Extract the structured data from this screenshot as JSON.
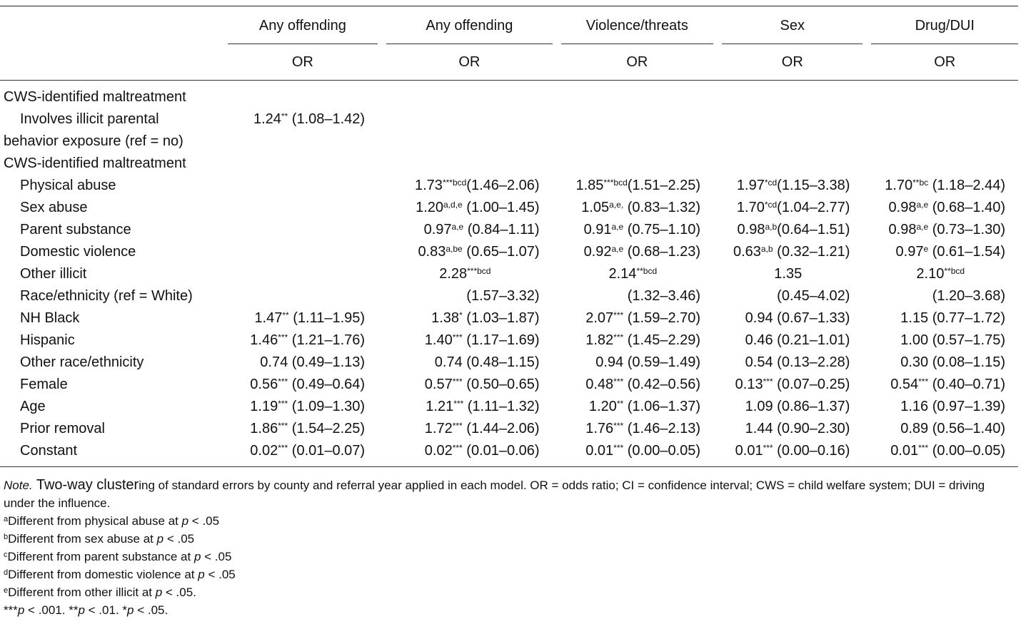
{
  "headers": {
    "groups": [
      "Any offending",
      "Any offending",
      "Violence/threats",
      "Sex",
      "Drug/DUI"
    ],
    "sub": [
      "OR",
      "OR",
      "OR",
      "OR",
      "OR"
    ]
  },
  "rows": [
    {
      "label": "CWS-identified maltreatment",
      "indent": false,
      "cells": [
        null,
        null,
        null,
        null,
        null
      ]
    },
    {
      "label": "Involves illicit parental",
      "indent": true,
      "cells": [
        [
          "1.24",
          "**",
          " (1.08–1.42)"
        ],
        null,
        null,
        null,
        null
      ]
    },
    {
      "label": "behavior exposure (ref = no)",
      "indent": false,
      "cells": [
        null,
        null,
        null,
        null,
        null
      ]
    },
    {
      "label": "CWS-identified maltreatment",
      "indent": false,
      "cells": [
        null,
        null,
        null,
        null,
        null
      ]
    },
    {
      "label": "Physical abuse",
      "indent": true,
      "cells": [
        null,
        [
          "1.73",
          "***bcd",
          "(1.46–2.06)"
        ],
        [
          "1.85",
          "***bcd",
          "(1.51–2.25)"
        ],
        [
          "1.97",
          "*cd",
          "(1.15–3.38)"
        ],
        [
          "1.70",
          "**bc",
          " (1.18–2.44)"
        ]
      ]
    },
    {
      "label": "Sex abuse",
      "indent": true,
      "cells": [
        null,
        [
          "1.20",
          "a,d,e",
          " (1.00–1.45)"
        ],
        [
          "1.05",
          "a,e,",
          " (0.83–1.32)"
        ],
        [
          "1.70",
          "*cd",
          "(1.04–2.77)"
        ],
        [
          "0.98",
          "a,e",
          " (0.68–1.40)"
        ]
      ]
    },
    {
      "label": "Parent substance",
      "indent": true,
      "cells": [
        null,
        [
          "0.97",
          "a,e",
          " (0.84–1.11)"
        ],
        [
          "0.91",
          "a,e",
          " (0.75–1.10)"
        ],
        [
          "0.98",
          "a,b",
          "(0.64–1.51)"
        ],
        [
          "0.98",
          "a,e",
          " (0.73–1.30)"
        ]
      ]
    },
    {
      "label": "Domestic violence",
      "indent": true,
      "cells": [
        null,
        [
          "0.83",
          "a,be",
          " (0.65–1.07)"
        ],
        [
          "0.92",
          "a,e",
          " (0.68–1.23)"
        ],
        [
          "0.63",
          "a,b",
          " (0.32–1.21)"
        ],
        [
          "0.97",
          "e",
          " (0.61–1.54)"
        ]
      ]
    },
    {
      "label": "Other illicit",
      "indent": true,
      "center": true,
      "cells": [
        null,
        [
          "2.28",
          "***bcd",
          ""
        ],
        [
          "2.14",
          "**bcd",
          ""
        ],
        [
          "1.35",
          "",
          ""
        ],
        [
          "2.10",
          "**bcd",
          ""
        ]
      ]
    },
    {
      "label": "Race/ethnicity (ref = White)",
      "indent": true,
      "cells": [
        null,
        [
          "",
          "",
          "(1.57–3.32)"
        ],
        [
          "",
          "",
          "(1.32–3.46)"
        ],
        [
          "",
          "",
          "(0.45–4.02)"
        ],
        [
          "",
          "",
          "(1.20–3.68)"
        ]
      ]
    },
    {
      "label": "NH Black",
      "indent": true,
      "cells": [
        [
          "1.47",
          "**",
          " (1.11–1.95)"
        ],
        [
          "1.38",
          "*",
          " (1.03–1.87)"
        ],
        [
          "2.07",
          "***",
          " (1.59–2.70)"
        ],
        [
          "0.94",
          "",
          " (0.67–1.33)"
        ],
        [
          "1.15",
          "",
          " (0.77–1.72)"
        ]
      ]
    },
    {
      "label": "Hispanic",
      "indent": true,
      "cells": [
        [
          "1.46",
          "***",
          " (1.21–1.76)"
        ],
        [
          "1.40",
          "***",
          " (1.17–1.69)"
        ],
        [
          "1.82",
          "***",
          " (1.45–2.29)"
        ],
        [
          "0.46",
          "",
          " (0.21–1.01)"
        ],
        [
          "1.00",
          "",
          " (0.57–1.75)"
        ]
      ]
    },
    {
      "label": "Other race/ethnicity",
      "indent": true,
      "cells": [
        [
          "0.74",
          "",
          " (0.49–1.13)"
        ],
        [
          "0.74",
          "",
          " (0.48–1.15)"
        ],
        [
          "0.94",
          "",
          " (0.59–1.49)"
        ],
        [
          "0.54",
          "",
          " (0.13–2.28)"
        ],
        [
          "0.30",
          "",
          " (0.08–1.15)"
        ]
      ]
    },
    {
      "label": "Female",
      "indent": true,
      "cells": [
        [
          "0.56",
          "***",
          " (0.49–0.64)"
        ],
        [
          "0.57",
          "***",
          " (0.50–0.65)"
        ],
        [
          "0.48",
          "***",
          " (0.42–0.56)"
        ],
        [
          "0.13",
          "***",
          " (0.07–0.25)"
        ],
        [
          "0.54",
          "***",
          " (0.40–0.71)"
        ]
      ]
    },
    {
      "label": "Age",
      "indent": true,
      "cells": [
        [
          "1.19",
          "***",
          " (1.09–1.30)"
        ],
        [
          "1.21",
          "***",
          " (1.11–1.32)"
        ],
        [
          "1.20",
          "**",
          " (1.06–1.37)"
        ],
        [
          "1.09",
          "",
          " (0.86–1.37)"
        ],
        [
          "1.16",
          "",
          " (0.97–1.39)"
        ]
      ]
    },
    {
      "label": "Prior removal",
      "indent": true,
      "cells": [
        [
          "1.86",
          "***",
          " (1.54–2.25)"
        ],
        [
          "1.72",
          "***",
          " (1.44–2.06)"
        ],
        [
          "1.76",
          "***",
          " (1.46–2.13)"
        ],
        [
          "1.44",
          "",
          " (0.90–2.30)"
        ],
        [
          "0.89",
          "",
          " (0.56–1.40)"
        ]
      ]
    },
    {
      "label": "Constant",
      "indent": true,
      "cells": [
        [
          "0.02",
          "***",
          " (0.01–0.07)"
        ],
        [
          "0.02",
          "***",
          " (0.01–0.06)"
        ],
        [
          "0.01",
          "***",
          " (0.00–0.05)"
        ],
        [
          "0.01",
          "***",
          " (0.00–0.16)"
        ],
        [
          "0.01",
          "***",
          " (0.00–0.05)"
        ]
      ]
    }
  ],
  "notes": {
    "note_label": "Note.",
    "note_text_a": " Two-way cluster",
    "note_text_b": "ing of standard errors by county and referral year applied in each model. OR = odds ratio; CI = confidence interval; CWS = child welfare system; DUI = driving under the influence.",
    "footnotes": [
      {
        "mark": "a",
        "text": "Different from physical abuse at ",
        "p": "p",
        "tail": " < .05"
      },
      {
        "mark": "b",
        "text": "Different from sex abuse at ",
        "p": "p",
        "tail": " < .05"
      },
      {
        "mark": "c",
        "text": "Different from parent substance at ",
        "p": "p",
        "tail": " < .05"
      },
      {
        "mark": "d",
        "text": "Different from domestic violence at ",
        "p": "p",
        "tail": " < .05"
      },
      {
        "mark": "e",
        "text": "Different from other illicit at ",
        "p": "p",
        "tail": " < .05."
      }
    ],
    "sig": [
      "***",
      "p",
      " < .001. **",
      "p",
      " < .01. *",
      "p",
      " < .05."
    ]
  }
}
